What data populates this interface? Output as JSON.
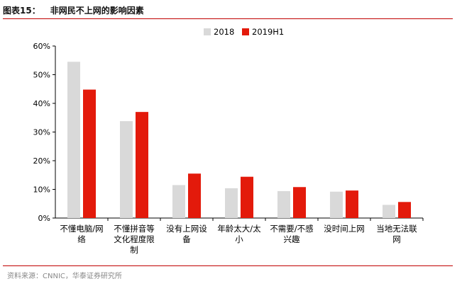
{
  "figure": {
    "number": "图表15：",
    "title": "非网民不上网的影响因素",
    "source": "资料来源：CNNIC，华泰证券研究所"
  },
  "chart_data": {
    "type": "bar",
    "categories": [
      [
        "不懂电脑/网",
        "络"
      ],
      [
        "不懂拼音等",
        "文化程度限",
        "制"
      ],
      [
        "没有上网设",
        "备"
      ],
      [
        "年龄太大/太",
        "小"
      ],
      [
        "不需要/不感",
        "兴趣"
      ],
      [
        "没时间上网"
      ],
      [
        "当地无法联",
        "网"
      ]
    ],
    "series": [
      {
        "name": "2018",
        "color": "#d9d9d9",
        "values": [
          54.5,
          33.8,
          11.5,
          10.4,
          9.4,
          9.2,
          4.6
        ]
      },
      {
        "name": "2019H1",
        "color": "#e31a0b",
        "values": [
          44.8,
          37.0,
          15.5,
          14.4,
          10.8,
          9.6,
          5.6
        ]
      }
    ],
    "ylim": [
      0,
      60
    ],
    "yticks": [
      "0%",
      "10%",
      "20%",
      "30%",
      "40%",
      "50%",
      "60%"
    ],
    "grid": false,
    "legend": "top-center"
  }
}
